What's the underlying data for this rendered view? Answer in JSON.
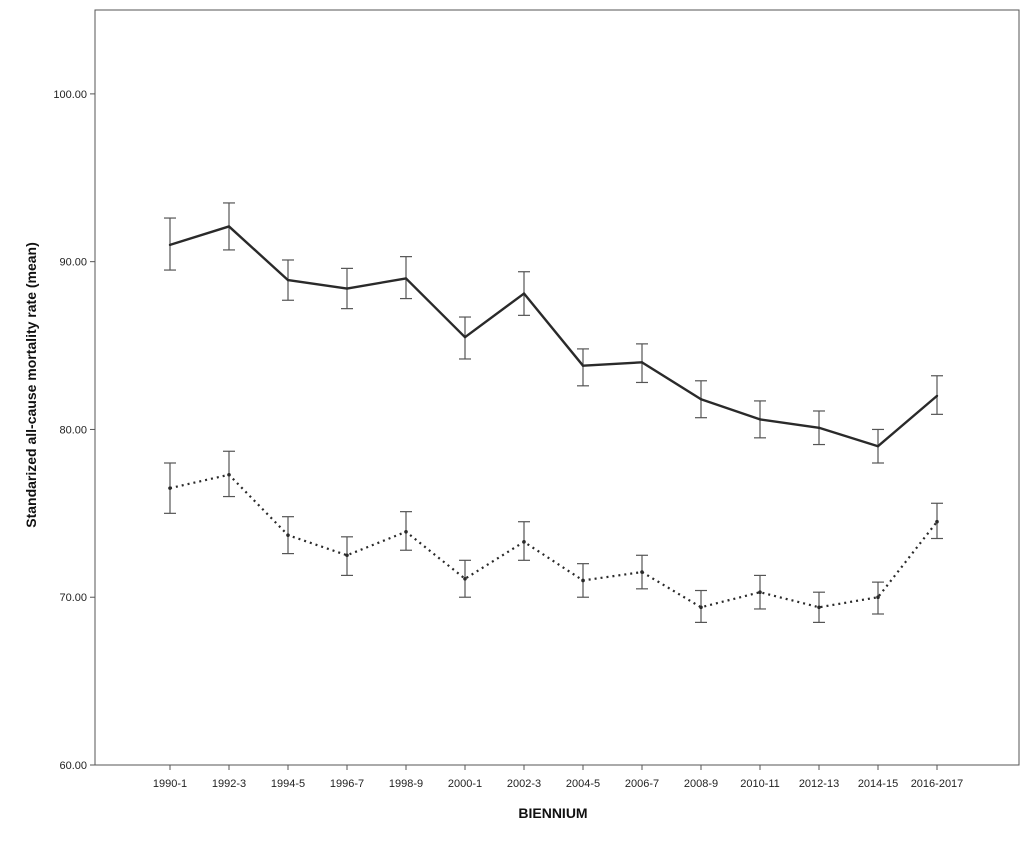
{
  "chart_data": {
    "type": "line",
    "title": "",
    "xlabel": "BIENNIUM",
    "ylabel": "Standarized all-cause mortality rate (mean)",
    "ylim": [
      60,
      105
    ],
    "y_ticks": [
      "60.00",
      "70.00",
      "80.00",
      "90.00",
      "100.00"
    ],
    "y_tick_values": [
      60,
      70,
      80,
      90,
      100
    ],
    "categories": [
      "1990-1",
      "1992-3",
      "1994-5",
      "1996-7",
      "1998-9",
      "2000-1",
      "2002-3",
      "2004-5",
      "2006-7",
      "2008-9",
      "2010-11",
      "2012-13",
      "2014-15",
      "2016-2017"
    ],
    "grid": false,
    "legend": "none",
    "series": [
      {
        "style": "solid",
        "color": "#2a2a2a",
        "values": [
          91.0,
          92.1,
          88.9,
          88.4,
          89.0,
          85.5,
          88.1,
          83.8,
          84.0,
          81.8,
          80.6,
          80.1,
          79.0,
          82.0
        ],
        "lower": [
          89.5,
          90.7,
          87.7,
          87.2,
          87.8,
          84.2,
          86.8,
          82.6,
          82.8,
          80.7,
          79.5,
          79.1,
          78.0,
          80.9
        ],
        "upper": [
          92.6,
          93.5,
          90.1,
          89.6,
          90.3,
          86.7,
          89.4,
          84.8,
          85.1,
          82.9,
          81.7,
          81.1,
          80.0,
          83.2
        ]
      },
      {
        "style": "dotted",
        "color": "#2a2a2a",
        "values": [
          76.5,
          77.3,
          73.7,
          72.5,
          73.9,
          71.1,
          73.3,
          71.0,
          71.5,
          69.4,
          70.3,
          69.4,
          70.0,
          74.5
        ],
        "lower": [
          75.0,
          76.0,
          72.6,
          71.3,
          72.8,
          70.0,
          72.2,
          70.0,
          70.5,
          68.5,
          69.3,
          68.5,
          69.0,
          73.5
        ],
        "upper": [
          78.0,
          78.7,
          74.8,
          73.6,
          75.1,
          72.2,
          74.5,
          72.0,
          72.5,
          70.4,
          71.3,
          70.3,
          70.9,
          75.6
        ]
      }
    ]
  }
}
